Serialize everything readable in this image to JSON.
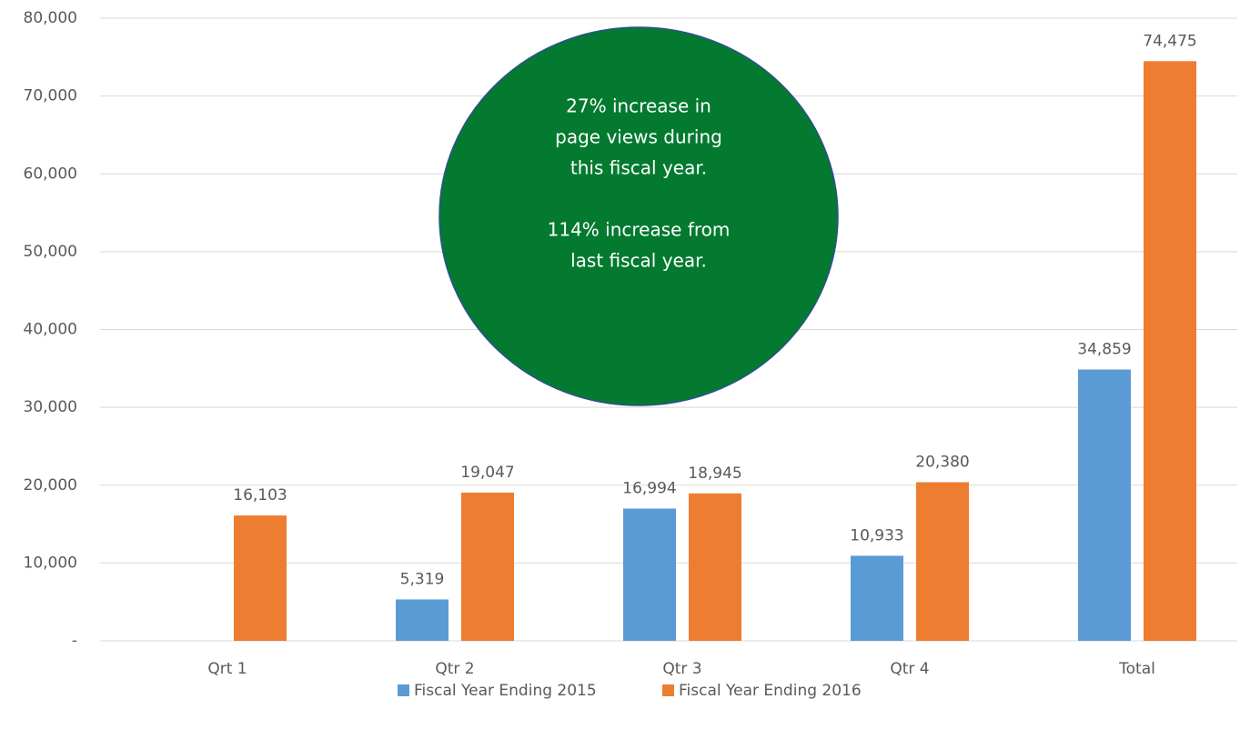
{
  "chart_data": {
    "type": "bar",
    "categories": [
      "Qrt 1",
      "Qtr 2",
      "Qtr 3",
      "Qtr 4",
      "Total"
    ],
    "series": [
      {
        "name": "Fiscal Year Ending 2015",
        "color": "#5b9bd5",
        "values": [
          null,
          5319,
          16994,
          10933,
          34859
        ],
        "value_labels": [
          null,
          "5,319",
          "16,994",
          "10,933",
          "34,859"
        ]
      },
      {
        "name": "Fiscal Year Ending 2016",
        "color": "#ed7d31",
        "values": [
          16103,
          19047,
          18945,
          20380,
          74475
        ],
        "value_labels": [
          "16,103",
          "19,047",
          "18,945",
          "20,380",
          "74,475"
        ]
      }
    ],
    "ylim": [
      0,
      80000
    ],
    "yticks": [
      {
        "value": 0,
        "label": "-"
      },
      {
        "value": 10000,
        "label": "10,000"
      },
      {
        "value": 20000,
        "label": "20,000"
      },
      {
        "value": 30000,
        "label": "30,000"
      },
      {
        "value": 40000,
        "label": "40,000"
      },
      {
        "value": 50000,
        "label": "50,000"
      },
      {
        "value": 60000,
        "label": "60,000"
      },
      {
        "value": 70000,
        "label": "70,000"
      },
      {
        "value": 80000,
        "label": "80,000"
      }
    ],
    "grid": true,
    "legend": "bottom",
    "annotation": {
      "color": "#037a30",
      "paragraphs": [
        [
          "27% increase in",
          "page views during",
          "this fiscal year."
        ],
        [
          "114% increase from",
          "last fiscal year."
        ]
      ]
    }
  }
}
